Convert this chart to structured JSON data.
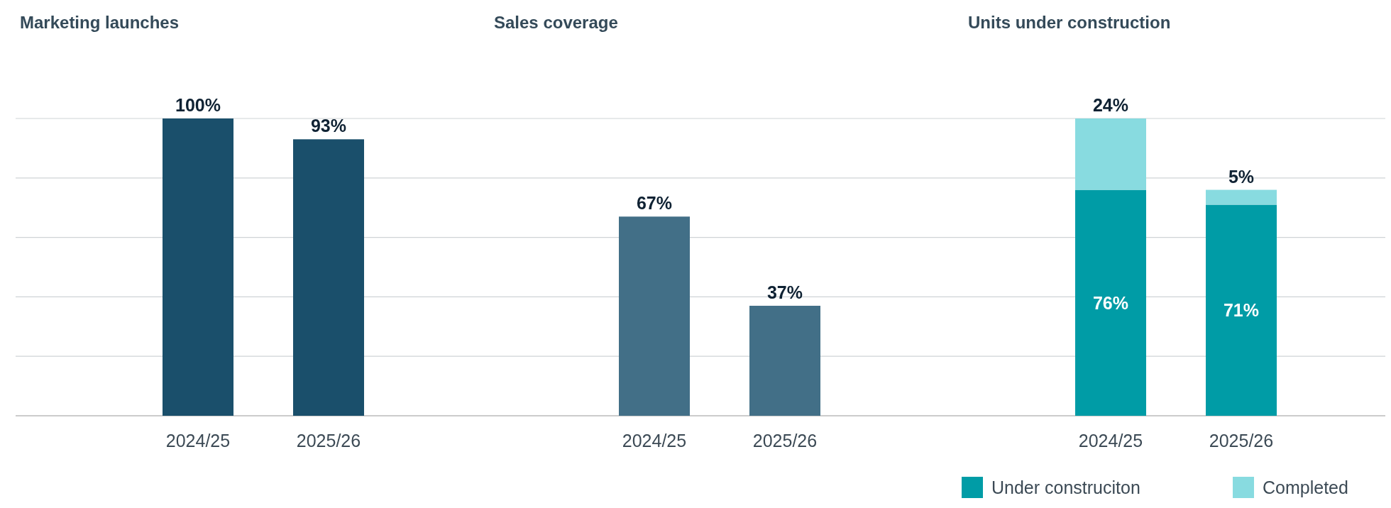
{
  "chart_data": [
    {
      "type": "bar",
      "title": "Marketing launches",
      "categories": [
        "2024/25",
        "2025/26"
      ],
      "ylim": [
        0,
        100
      ],
      "yticks": [
        {
          "value": 0,
          "label": null
        },
        {
          "value": 20,
          "label": null
        },
        {
          "value": 40,
          "label": null
        },
        {
          "value": 60,
          "label": null
        },
        {
          "value": 80,
          "label": null
        },
        {
          "value": 100,
          "label": null
        }
      ],
      "grid": "y",
      "legend": false,
      "series": [
        {
          "color": "#1a4f6b",
          "values": [
            100,
            93
          ],
          "value_labels": [
            "100%",
            "93%"
          ]
        }
      ]
    },
    {
      "type": "bar",
      "title": "Sales coverage",
      "categories": [
        "2024/25",
        "2025/26"
      ],
      "ylim": [
        0,
        100
      ],
      "yticks": [
        {
          "value": 0,
          "label": null
        },
        {
          "value": 20,
          "label": null
        },
        {
          "value": 40,
          "label": null
        },
        {
          "value": 60,
          "label": null
        },
        {
          "value": 80,
          "label": null
        },
        {
          "value": 100,
          "label": null
        }
      ],
      "grid": "y",
      "legend": false,
      "series": [
        {
          "color": "#426f87",
          "values": [
            67,
            37
          ],
          "value_labels": [
            "67%",
            "37%"
          ]
        }
      ]
    },
    {
      "type": "bar",
      "title": "Units under construction",
      "categories": [
        "2024/25",
        "2025/26"
      ],
      "ylim": [
        0,
        100
      ],
      "yticks": [
        {
          "value": 0,
          "label": null
        },
        {
          "value": 20,
          "label": null
        },
        {
          "value": 40,
          "label": null
        },
        {
          "value": 60,
          "label": null
        },
        {
          "value": 80,
          "label": null
        },
        {
          "value": 100,
          "label": null
        }
      ],
      "grid": "y",
      "stacked": true,
      "legend": "bottom",
      "series": [
        {
          "name": "Under construciton",
          "color": "#009ca6",
          "values": [
            76,
            71
          ],
          "value_labels": [
            "76%",
            "71%"
          ]
        },
        {
          "name": "Completed",
          "color": "#88dbe0",
          "values": [
            24,
            5
          ],
          "value_labels": [
            "24%",
            "5%"
          ]
        }
      ]
    }
  ]
}
